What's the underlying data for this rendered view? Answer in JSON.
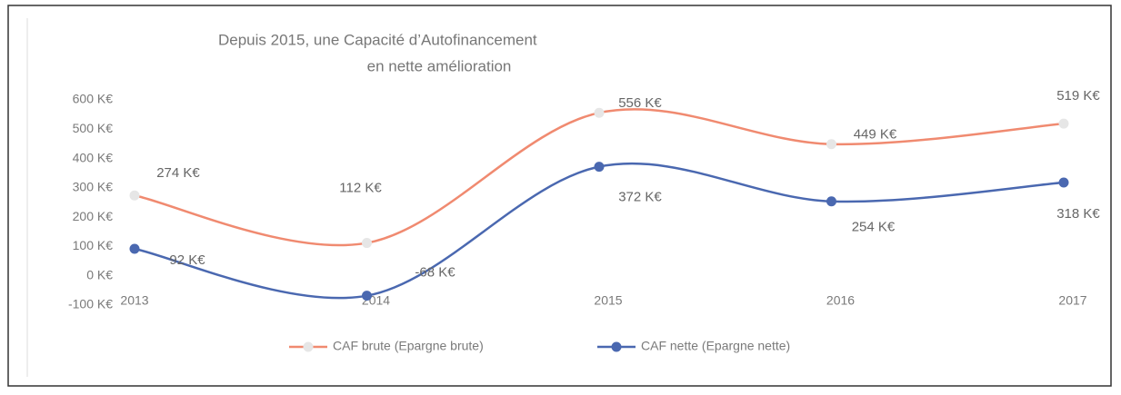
{
  "chart_data": {
    "type": "line",
    "title": [
      "Depuis 2015, une Capacité d’Autofinancement",
      "en nette amélioration"
    ],
    "categories": [
      "2013",
      "2014",
      "2015",
      "2016",
      "2017"
    ],
    "series": [
      {
        "name": "CAF brute (Epargne brute)",
        "color": "#f08a70",
        "marker_color": "#e6e6e6",
        "values": [
          274,
          112,
          556,
          449,
          519
        ],
        "value_labels": [
          "274 K€",
          "112 K€",
          "556 K€",
          "449 K€",
          "519 K€"
        ]
      },
      {
        "name": "CAF nette (Epargne nette)",
        "color": "#4a68b0",
        "marker_color": "#4a68b0",
        "values": [
          92,
          -68,
          372,
          254,
          318
        ],
        "value_labels": [
          "92 K€",
          "-68 K€",
          "372 K€",
          "254 K€",
          "318 K€"
        ]
      }
    ],
    "ylim": [
      -100,
      600
    ],
    "yticks": [
      {
        "value": -100,
        "label": "-100 K€"
      },
      {
        "value": 0,
        "label": "0 K€"
      },
      {
        "value": 100,
        "label": "100 K€"
      },
      {
        "value": 200,
        "label": "200 K€"
      },
      {
        "value": 300,
        "label": "300 K€"
      },
      {
        "value": 400,
        "label": "400 K€"
      },
      {
        "value": 500,
        "label": "500 K€"
      },
      {
        "value": 600,
        "label": "600 K€"
      }
    ],
    "grid": false,
    "legend": "bottom"
  }
}
